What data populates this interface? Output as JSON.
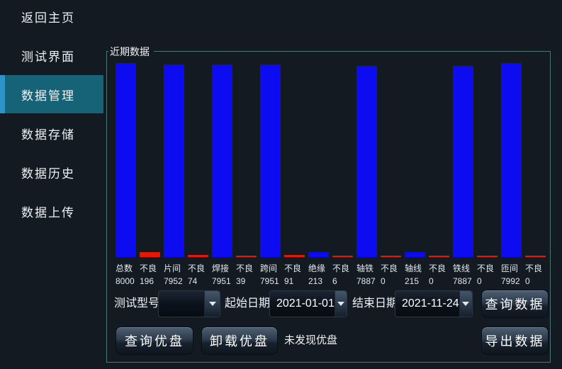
{
  "sidebar": {
    "items": [
      {
        "label": "返回主页",
        "active": false
      },
      {
        "label": "测试界面",
        "active": false
      },
      {
        "label": "数据管理",
        "active": true
      },
      {
        "label": "数据存储",
        "active": false
      },
      {
        "label": "数据历史",
        "active": false
      },
      {
        "label": "数据上传",
        "active": false
      }
    ]
  },
  "panel": {
    "title": "近期数据"
  },
  "chart_data": {
    "type": "bar",
    "categories": [
      "总数",
      "不良",
      "片间",
      "不良",
      "焊接",
      "不良",
      "跨间",
      "不良",
      "绝缘",
      "不良",
      "轴铁",
      "不良",
      "轴线",
      "不良",
      "铁线",
      "不良",
      "匝间",
      "不良"
    ],
    "values": [
      8000,
      196,
      7952,
      74,
      7951,
      39,
      7951,
      91,
      213,
      6,
      7887,
      0,
      215,
      0,
      7887,
      0,
      7992,
      0
    ],
    "title": "近期数据",
    "xlabel": "",
    "ylabel": "",
    "ylim": [
      0,
      8000
    ],
    "grid": false,
    "legend": "none",
    "bar_colors": {
      "count": "#0d0cf0",
      "defect": "#ea1505"
    },
    "defect_category_name": "不良"
  },
  "controls": {
    "model_label": "测试型号",
    "model_value": "",
    "start_date_label": "起始日期",
    "start_date_value": "2021-01-01",
    "end_date_label": "结束日期",
    "end_date_value": "2021-11-24",
    "query_data_button": "查询数据",
    "query_usb_button": "查询优盘",
    "unmount_usb_button": "卸载优盘",
    "usb_status": "未发现优盘",
    "export_data_button": "导出数据"
  },
  "colors": {
    "background": "#141a21",
    "sidebar_active_bg": "#166378",
    "sidebar_active_accent": "#2e93c8",
    "panel_border": "#4f7476",
    "bar_blue": "#0d0cf0",
    "bar_red": "#ea1505"
  }
}
